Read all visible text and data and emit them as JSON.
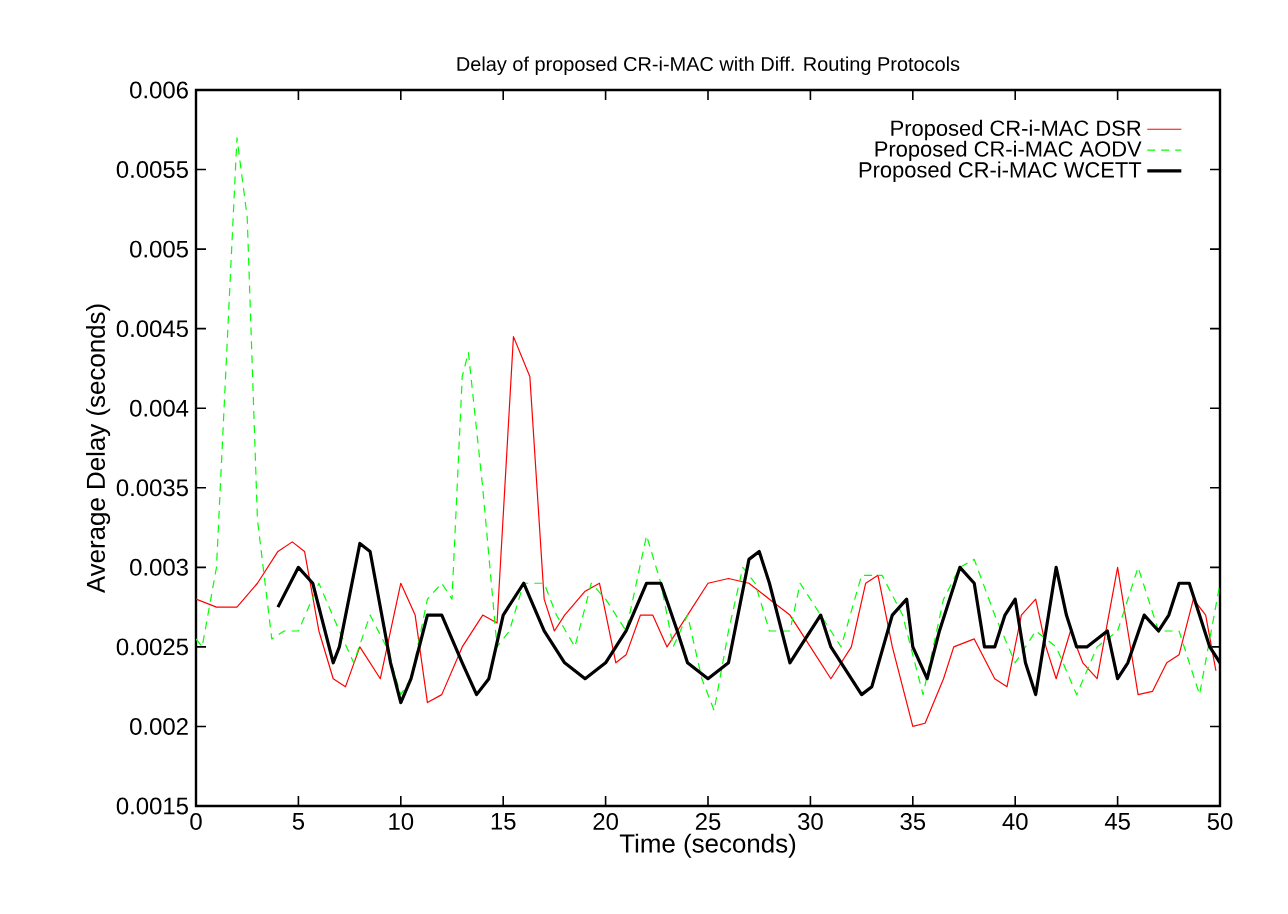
{
  "chart_data": {
    "type": "line",
    "title": "Delay of proposed CR-i-MAC with Diff. Routing Protocols",
    "xlabel": "Time (seconds)",
    "ylabel": "Average Delay (seconds)",
    "xlim": [
      0,
      50
    ],
    "ylim": [
      0.0015,
      0.006
    ],
    "xticks": [
      0,
      5,
      10,
      15,
      20,
      25,
      30,
      35,
      40,
      45,
      50
    ],
    "yticks": [
      0.0015,
      0.002,
      0.0025,
      0.003,
      0.0035,
      0.004,
      0.0045,
      0.005,
      0.0055,
      0.006
    ],
    "grid": false,
    "legend": "top right",
    "marker": "none",
    "series": [
      {
        "name": "Proposed CR-i-MAC DSR",
        "color": "#ff0000",
        "line_style": "solid",
        "x": [
          0,
          1,
          2,
          3,
          4,
          4.7,
          5.3,
          6,
          6.7,
          7.3,
          8,
          9,
          10,
          10.7,
          11.3,
          12,
          13,
          14,
          14.7,
          15.5,
          16.3,
          17,
          17.5,
          18,
          19,
          19.7,
          20.5,
          21,
          21.7,
          22.3,
          23,
          24,
          25,
          26,
          27,
          28,
          29,
          30,
          31,
          32,
          32.7,
          33.3,
          34,
          35,
          35.6,
          36.5,
          37,
          38,
          39,
          39.6,
          40.3,
          41,
          41.5,
          42,
          42.7,
          43.3,
          44,
          45,
          45.5,
          46,
          46.7,
          47.4,
          48,
          48.7,
          49.3,
          49.8
        ],
        "values": [
          0.0028,
          0.00275,
          0.00275,
          0.0029,
          0.0031,
          0.00316,
          0.0031,
          0.0026,
          0.0023,
          0.00225,
          0.0025,
          0.0023,
          0.0029,
          0.0027,
          0.00215,
          0.0022,
          0.0025,
          0.0027,
          0.00265,
          0.00445,
          0.0042,
          0.0028,
          0.0026,
          0.0027,
          0.00285,
          0.0029,
          0.0024,
          0.00245,
          0.0027,
          0.0027,
          0.0025,
          0.0027,
          0.0029,
          0.00293,
          0.0029,
          0.0028,
          0.0027,
          0.0025,
          0.0023,
          0.0025,
          0.0029,
          0.00295,
          0.0025,
          0.002,
          0.00202,
          0.0023,
          0.0025,
          0.00255,
          0.0023,
          0.00225,
          0.0027,
          0.0028,
          0.0025,
          0.0023,
          0.0026,
          0.0024,
          0.0023,
          0.003,
          0.0026,
          0.0022,
          0.00222,
          0.0024,
          0.00245,
          0.0028,
          0.0027,
          0.00235
        ]
      },
      {
        "name": "Proposed CR-i-MAC AODV",
        "color": "#00ff00",
        "line_style": "dashed",
        "x": [
          0,
          0.3,
          1,
          2,
          2.5,
          3,
          3.7,
          4.3,
          5,
          6,
          7,
          7.7,
          8.5,
          9.3,
          10,
          10.5,
          11.3,
          12,
          12.5,
          13,
          13.3,
          14,
          14.7,
          15.3,
          16,
          17,
          17.6,
          18.5,
          19.3,
          20,
          21,
          21.5,
          22,
          22.7,
          23.3,
          24,
          24.7,
          25.3,
          26,
          26.7,
          27.3,
          28,
          29,
          29.5,
          30.5,
          31.5,
          32.5,
          33.5,
          34.5,
          35.5,
          36.5,
          37.3,
          38,
          39,
          40,
          41,
          42,
          43,
          44,
          45,
          46,
          47,
          48,
          49,
          50
        ],
        "values": [
          0.00255,
          0.0025,
          0.003,
          0.0057,
          0.0052,
          0.0033,
          0.00255,
          0.0026,
          0.0026,
          0.0029,
          0.0026,
          0.0024,
          0.0027,
          0.0025,
          0.0022,
          0.0023,
          0.0028,
          0.0029,
          0.0028,
          0.0042,
          0.00435,
          0.0035,
          0.0025,
          0.0026,
          0.0029,
          0.0029,
          0.0027,
          0.0025,
          0.0029,
          0.0028,
          0.0026,
          0.0029,
          0.0032,
          0.0029,
          0.0025,
          0.0027,
          0.0023,
          0.0021,
          0.0026,
          0.003,
          0.0029,
          0.0026,
          0.0026,
          0.0029,
          0.0027,
          0.0025,
          0.00295,
          0.00295,
          0.0027,
          0.0022,
          0.0028,
          0.003,
          0.00305,
          0.0027,
          0.0024,
          0.0026,
          0.0025,
          0.0022,
          0.0025,
          0.0026,
          0.003,
          0.0026,
          0.0026,
          0.0022,
          0.0029
        ]
      },
      {
        "name": "Proposed CR-i-MAC WCETT",
        "color": "#000000",
        "line_style": "solid",
        "x": [
          4,
          5,
          5.7,
          6.7,
          7,
          8,
          8.5,
          9.5,
          10,
          10.5,
          11.3,
          12,
          13,
          13.7,
          14.3,
          15,
          16,
          17,
          18,
          19,
          20,
          21,
          22,
          22.7,
          23.5,
          24,
          25,
          26,
          27,
          27.5,
          28,
          29,
          29.5,
          30,
          30.5,
          31,
          32.5,
          33,
          34,
          34.7,
          35,
          35.7,
          36.3,
          37.3,
          38,
          38.5,
          39,
          39.5,
          40,
          40.5,
          41,
          41.5,
          42,
          42.5,
          43,
          43.5,
          44.5,
          45,
          45.5,
          46.3,
          47,
          47.5,
          48,
          48.5,
          49,
          49.5,
          50
        ],
        "values": [
          0.00275,
          0.003,
          0.0029,
          0.0024,
          0.0025,
          0.00315,
          0.0031,
          0.0024,
          0.00215,
          0.0023,
          0.0027,
          0.0027,
          0.0024,
          0.0022,
          0.0023,
          0.0027,
          0.0029,
          0.0026,
          0.0024,
          0.0023,
          0.0024,
          0.0026,
          0.0029,
          0.0029,
          0.0026,
          0.0024,
          0.0023,
          0.0024,
          0.00305,
          0.0031,
          0.0029,
          0.0024,
          0.0025,
          0.0026,
          0.0027,
          0.0025,
          0.0022,
          0.00225,
          0.0027,
          0.0028,
          0.0025,
          0.0023,
          0.0026,
          0.003,
          0.0029,
          0.0025,
          0.0025,
          0.0027,
          0.0028,
          0.0024,
          0.0022,
          0.0026,
          0.003,
          0.0027,
          0.0025,
          0.0025,
          0.0026,
          0.0023,
          0.0024,
          0.0027,
          0.0026,
          0.0027,
          0.0029,
          0.0029,
          0.0027,
          0.0025,
          0.0024
        ]
      }
    ]
  }
}
